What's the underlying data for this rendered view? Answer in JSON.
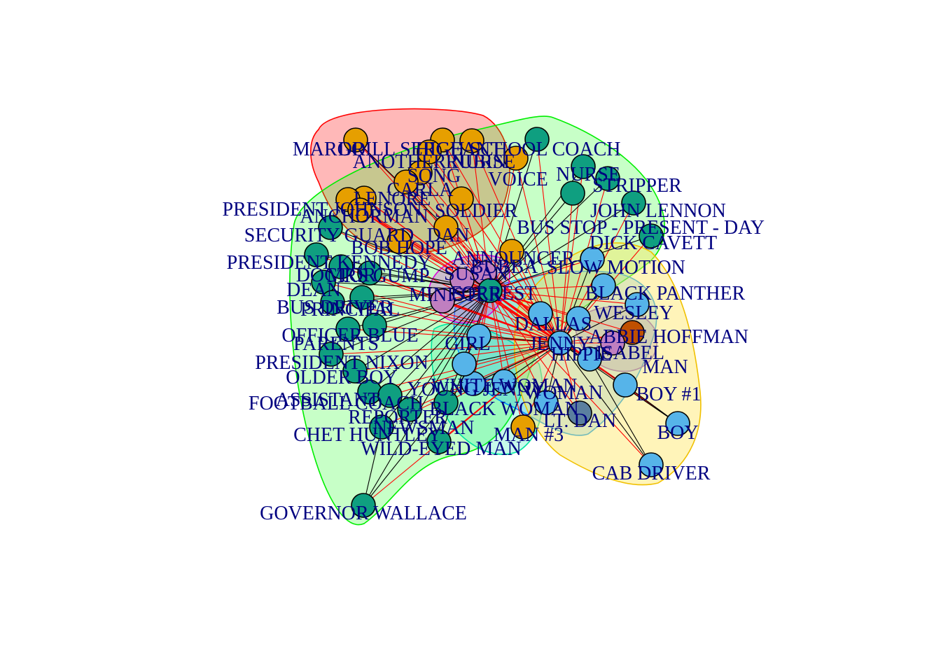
{
  "colors": {
    "label": "#000080",
    "edge_intra": "#000000",
    "edge_inter": "#ff0000",
    "community_orange": "#e69f00",
    "community_green": "#0f9f80",
    "community_blue": "#56b4e9",
    "community_purple": "#c07fc0",
    "community_red": "#c05000",
    "community_slate": "#5b7f9f"
  },
  "communities": [
    {
      "id": "red",
      "fill": "rgba(255,0,0,0.28)",
      "stroke": "#ff0000"
    },
    {
      "id": "green",
      "fill": "rgba(0,255,0,0.22)",
      "stroke": "#00ee00"
    },
    {
      "id": "teal",
      "fill": "rgba(0,230,160,0.22)",
      "stroke": "#00e5a0"
    },
    {
      "id": "blue",
      "fill": "rgba(0,150,255,0.22)",
      "stroke": "#0096ff"
    },
    {
      "id": "magenta",
      "fill": "rgba(220,0,220,0.25)",
      "stroke": "#dd00dd"
    },
    {
      "id": "purple",
      "fill": "rgba(120,80,200,0.28)",
      "stroke": "#7b4fd0"
    },
    {
      "id": "yellow",
      "fill": "rgba(255,230,100,0.45)",
      "stroke": "#f0c000"
    }
  ],
  "hubs": [
    "FORREST",
    "JENNY"
  ],
  "nodes": [
    {
      "name": "MARGO",
      "color": "orange"
    },
    {
      "name": "DRILL SERGEANT",
      "color": "orange"
    },
    {
      "name": "HIGH SCHOOL COACH",
      "color": "green"
    },
    {
      "name": "ANOTHER NURSE",
      "color": "orange"
    },
    {
      "name": "RUBIN",
      "color": "orange"
    },
    {
      "name": "SONG",
      "color": "orange"
    },
    {
      "name": "CARLA",
      "color": "orange"
    },
    {
      "name": "VOICE",
      "color": "orange"
    },
    {
      "name": "LENORE",
      "color": "orange"
    },
    {
      "name": "PRESIDENT JOHNSON",
      "color": "orange"
    },
    {
      "name": "ANCHORMAN",
      "color": "orange"
    },
    {
      "name": "SOLDIER",
      "color": "orange"
    },
    {
      "name": "DAN",
      "color": "orange"
    },
    {
      "name": "BOB HOPE",
      "color": "orange"
    },
    {
      "name": "SECURITY GUARD",
      "color": "green"
    },
    {
      "name": "PRESIDENT KENNEDY",
      "color": "green"
    },
    {
      "name": "ANNOUNCER",
      "color": "orange"
    },
    {
      "name": "DOCTOR",
      "color": "green"
    },
    {
      "name": "MRS GUMP",
      "color": "green"
    },
    {
      "name": "DEAN",
      "color": "green"
    },
    {
      "name": "BUS DRIVER",
      "color": "green"
    },
    {
      "name": "PRINCIPAL",
      "color": "green"
    },
    {
      "name": "OFFICER BLUE",
      "color": "green"
    },
    {
      "name": "PARENTS",
      "color": "green"
    },
    {
      "name": "PRESIDENT NIXON",
      "color": "green"
    },
    {
      "name": "OLDER BOY",
      "color": "green"
    },
    {
      "name": "ASSISTANT",
      "color": "green"
    },
    {
      "name": "FOOTBALL COACH",
      "color": "green"
    },
    {
      "name": "REPORTER",
      "color": "green"
    },
    {
      "name": "NEWSMAN",
      "color": "green"
    },
    {
      "name": "CHET HUNTLEY",
      "color": "green"
    },
    {
      "name": "WILD-EYED MAN",
      "color": "green"
    },
    {
      "name": "GOVERNOR WALLACE",
      "color": "green"
    },
    {
      "name": "NURSE",
      "color": "green"
    },
    {
      "name": "STRIPPER",
      "color": "green"
    },
    {
      "name": "JOHN LENNON",
      "color": "green"
    },
    {
      "name": "BUS STOP - PRESENT - DAY",
      "color": "green"
    },
    {
      "name": "DICK CAVETT",
      "color": "green"
    },
    {
      "name": "SLOW MOTION",
      "color": "blue"
    },
    {
      "name": "BLACK PANTHER",
      "color": "blue"
    },
    {
      "name": "WESLEY",
      "color": "blue"
    },
    {
      "name": "ABBIE HOFFMAN",
      "color": "red"
    },
    {
      "name": "ISABEL",
      "color": "purple"
    },
    {
      "name": "MAN",
      "color": "blue"
    },
    {
      "name": "GIRL",
      "color": "blue"
    },
    {
      "name": "BOY #1",
      "color": "blue"
    },
    {
      "name": "BOY",
      "color": "blue"
    },
    {
      "name": "CAB DRIVER",
      "color": "blue"
    },
    {
      "name": "MAN #3",
      "color": "orange"
    },
    {
      "name": "WOMAN",
      "color": "blue"
    },
    {
      "name": "BUBBA",
      "color": "purple"
    },
    {
      "name": "SUSAN",
      "color": "purple"
    },
    {
      "name": "MINISTER",
      "color": "purple"
    },
    {
      "name": "FORREST",
      "color": "green"
    },
    {
      "name": "JENNY",
      "color": "blue"
    },
    {
      "name": "DALLAS",
      "color": "blue"
    },
    {
      "name": "HIPPIE",
      "color": "blue"
    },
    {
      "name": "YOUNG JENNY",
      "color": "blue"
    },
    {
      "name": "BLACK WOMAN",
      "color": "blue"
    },
    {
      "name": "WHITE WOMAN",
      "color": "blue"
    },
    {
      "name": "LT. DAN",
      "color": "slate"
    }
  ]
}
